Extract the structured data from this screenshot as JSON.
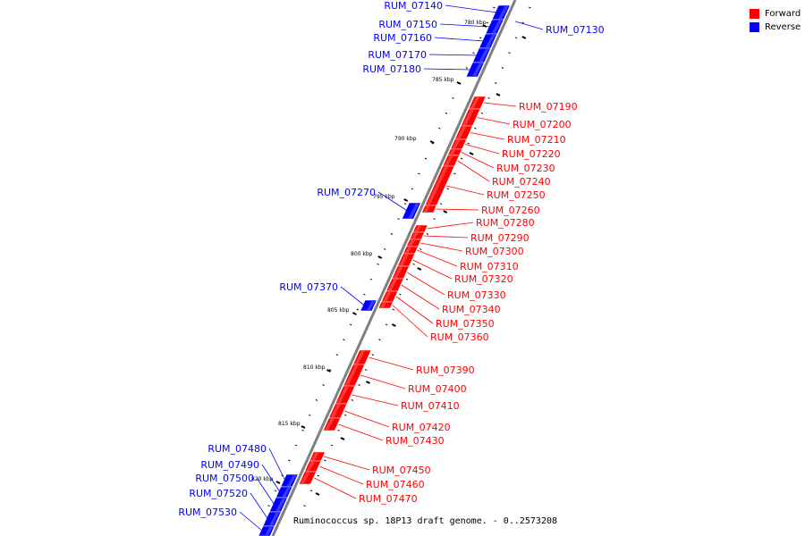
{
  "title": "Ruminococcus sp. 18P13 draft genome. - 0..2573208",
  "legend": {
    "forward_label": "Forward",
    "reverse_label": "Reverse",
    "forward_color": "#ff0000",
    "reverse_color": "#0000ff"
  },
  "colors": {
    "forward": "#ff0000",
    "reverse": "#0000ff"
  },
  "scale_labels": [
    "780 kbp",
    "785 kbp",
    "790 kbp",
    "795 kbp",
    "800 kbp",
    "805 kbp",
    "810 kbp",
    "815 kbp",
    "820 kbp"
  ],
  "genes_reverse": [
    "RUM_07130",
    "RUM_07140",
    "RUM_07150",
    "RUM_07160",
    "RUM_07170",
    "RUM_07180",
    "RUM_07270",
    "RUM_07370",
    "RUM_07480",
    "RUM_07490",
    "RUM_07500",
    "RUM_07520",
    "RUM_07530"
  ],
  "genes_forward": [
    "RUM_07190",
    "RUM_07200",
    "RUM_07210",
    "RUM_07220",
    "RUM_07230",
    "RUM_07240",
    "RUM_07250",
    "RUM_07260",
    "RUM_07280",
    "RUM_07290",
    "RUM_07300",
    "RUM_07310",
    "RUM_07320",
    "RUM_07330",
    "RUM_07340",
    "RUM_07350",
    "RUM_07360",
    "RUM_07390",
    "RUM_07400",
    "RUM_07410",
    "RUM_07420",
    "RUM_07430",
    "RUM_07450",
    "RUM_07460",
    "RUM_07470"
  ]
}
